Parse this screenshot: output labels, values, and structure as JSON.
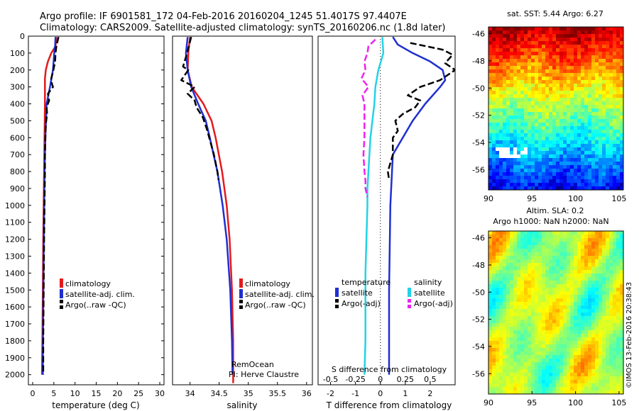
{
  "header": {
    "title_line1": "Argo profile: IF 6901581_172 04-Feb-2016 20160204_1245 51.4017S 97.4407E",
    "title_line2": "Climatology: CARS2009. Satellite-adjusted climatology: synTS_20160206.nc (1.8d later)"
  },
  "colors": {
    "climatology": "#e41a1c",
    "satellite_adj": "#1f2fd0",
    "argo": "#000000",
    "s_satellite": "#22d3e6",
    "s_argo": "#ee22ee"
  },
  "chart_data": [
    {
      "type": "line",
      "panel": "temperature",
      "xlabel": "temperature (deg C)",
      "ylabel": "",
      "xlim": [
        -1,
        31
      ],
      "ylim": [
        2060,
        0
      ],
      "xticks": [
        "0",
        "5",
        "10",
        "15",
        "20",
        "25",
        "30"
      ],
      "yticks": [
        "0",
        "100",
        "200",
        "300",
        "400",
        "500",
        "600",
        "700",
        "800",
        "900",
        "1000",
        "1100",
        "1200",
        "1300",
        "1400",
        "1500",
        "1600",
        "1700",
        "1800",
        "1900",
        "2000"
      ],
      "legend": [
        "climatology",
        "satellite-adj. clim.",
        "Argo(..raw -QC)"
      ],
      "series": [
        {
          "name": "climatology",
          "depth": [
            5,
            60,
            100,
            150,
            200,
            250,
            300,
            400,
            600,
            800,
            1000,
            1200,
            1500,
            1800,
            2000
          ],
          "values": [
            5.6,
            5.4,
            4.4,
            3.6,
            3.1,
            2.9,
            2.9,
            2.9,
            2.8,
            2.7,
            2.6,
            2.5,
            2.4,
            2.3,
            2.2
          ]
        },
        {
          "name": "satellite-adj. clim.",
          "depth": [
            5,
            60,
            100,
            200,
            300,
            400,
            600,
            800,
            1000,
            1300,
            1600,
            1900,
            2000
          ],
          "values": [
            5.4,
            5.3,
            5.1,
            4.8,
            4.1,
            3.3,
            3.0,
            2.8,
            2.7,
            2.6,
            2.5,
            2.4,
            2.4
          ]
        },
        {
          "name": "Argo(..raw -QC)",
          "depth": [
            5,
            60,
            100,
            150,
            200,
            260,
            300,
            340,
            380,
            420,
            460,
            520,
            600,
            700,
            800,
            1000,
            1200,
            1500,
            1800,
            2000
          ],
          "values": [
            6.1,
            5.6,
            5.4,
            5.3,
            4.9,
            4.3,
            4.8,
            3.6,
            3.9,
            3.3,
            3.4,
            3.1,
            3.0,
            2.9,
            2.9,
            2.8,
            2.7,
            2.6,
            2.5,
            2.5
          ]
        }
      ]
    },
    {
      "type": "line",
      "panel": "salinity",
      "xlabel": "salinity",
      "xlim": [
        33.7,
        36.1
      ],
      "ylim": [
        2060,
        0
      ],
      "xticks": [
        "34",
        "34.5",
        "35",
        "35.5",
        "36"
      ],
      "legend": [
        "climatology",
        "satellite-adj. clim.",
        "Argo(..raw -QC)"
      ],
      "annotation": [
        "RemOcean",
        "PI: Herve Claustre"
      ],
      "series": [
        {
          "name": "climatology",
          "depth": [
            5,
            100,
            200,
            300,
            400,
            500,
            600,
            800,
            1000,
            1200,
            1500,
            1800,
            2050
          ],
          "values": [
            34.0,
            33.97,
            33.96,
            34.03,
            34.23,
            34.37,
            34.44,
            34.55,
            34.63,
            34.68,
            34.72,
            34.74,
            34.74
          ]
        },
        {
          "name": "satellite-adj. clim.",
          "depth": [
            5,
            100,
            200,
            300,
            400,
            500,
            600,
            800,
            1000,
            1200,
            1500,
            1800,
            2000
          ],
          "values": [
            33.96,
            33.93,
            33.96,
            34.02,
            34.14,
            34.27,
            34.34,
            34.47,
            34.56,
            34.63,
            34.69,
            34.72,
            34.73
          ]
        },
        {
          "name": "Argo(..raw -QC)",
          "depth": [
            5,
            100,
            180,
            200,
            260,
            300,
            340,
            380,
            420,
            480,
            550,
            600,
            700,
            800,
            850
          ],
          "values": [
            34.02,
            33.95,
            33.88,
            33.97,
            33.85,
            34.08,
            33.96,
            34.08,
            34.11,
            34.22,
            34.29,
            34.33,
            34.41,
            34.47,
            34.49
          ]
        }
      ]
    },
    {
      "type": "line",
      "panel": "difference",
      "xlabel": "T difference from climatology",
      "top_xlabel": "S difference from climatology",
      "xlim": [
        -2.5,
        3
      ],
      "ylim": [
        2060,
        0
      ],
      "xticks": [
        "-2",
        "-1",
        "0",
        "1",
        "2"
      ],
      "top_xticks": [
        "-0.5",
        "-0.25",
        "0",
        "0.25",
        "0.5"
      ],
      "legend_headers": [
        "temperature",
        "salinity"
      ],
      "legend": [
        "satellite",
        "Argo(-adj)",
        "satellite",
        "Argo(-adj)"
      ],
      "series": [
        {
          "name": "satellite",
          "variable": "temperature",
          "depth": [
            5,
            50,
            100,
            150,
            200,
            260,
            300,
            400,
            500,
            600,
            700,
            1000,
            1500,
            2000
          ],
          "values": [
            0.5,
            0.7,
            1.3,
            2.0,
            2.5,
            2.6,
            2.4,
            1.8,
            1.3,
            0.9,
            0.5,
            0.4,
            0.35,
            0.35
          ]
        },
        {
          "name": "Argo(-adj)",
          "variable": "temperature",
          "depth": [
            40,
            80,
            110,
            160,
            200,
            230,
            260,
            300,
            350,
            380,
            420,
            460,
            500,
            560,
            600,
            700,
            800,
            850
          ],
          "values": [
            1.2,
            2.5,
            2.9,
            2.6,
            3.0,
            2.7,
            2.4,
            1.6,
            1.1,
            1.6,
            1.4,
            0.9,
            0.6,
            0.7,
            0.5,
            0.5,
            0.3,
            0.35
          ]
        },
        {
          "name": "satellite",
          "variable": "salinity",
          "depth": [
            5,
            100,
            200,
            300,
            400,
            500,
            600,
            700,
            800,
            900,
            1000,
            1200,
            1400,
            1600,
            1800,
            2000
          ],
          "values": [
            0.02,
            0.03,
            -0.02,
            -0.05,
            -0.06,
            -0.08,
            -0.1,
            -0.11,
            -0.12,
            -0.13,
            -0.13,
            -0.14,
            -0.15,
            -0.15,
            -0.15,
            -0.16
          ]
        },
        {
          "name": "Argo(-adj)",
          "variable": "salinity",
          "depth": [
            20,
            60,
            100,
            150,
            200,
            250,
            300,
            350,
            400,
            500,
            600,
            700,
            800,
            850,
            900,
            950
          ],
          "values": [
            -0.05,
            -0.12,
            -0.13,
            -0.16,
            -0.15,
            -0.19,
            -0.12,
            -0.18,
            -0.16,
            -0.16,
            -0.16,
            -0.17,
            -0.16,
            -0.15,
            -0.15,
            -0.13
          ]
        }
      ]
    },
    {
      "type": "heatmap",
      "panel": "sst_map",
      "title": "sat. SST: 5.44 Argo: 6.27",
      "xlim": [
        90,
        105.5
      ],
      "ylim": [
        -57.5,
        -45.5
      ],
      "xticks": [
        "90",
        "95",
        "100",
        "105"
      ],
      "yticks": [
        "-46",
        "-48",
        "-50",
        "-52",
        "-54",
        "-56"
      ]
    },
    {
      "type": "heatmap",
      "panel": "sla_map",
      "title_line1": "Altim. SLA: 0.2",
      "title_line2": "Argo h1000: NaN h2000: NaN",
      "xlim": [
        90,
        105.5
      ],
      "ylim": [
        -57.5,
        -45.5
      ],
      "xticks": [
        "90",
        "95",
        "100",
        "105"
      ],
      "yticks": [
        "-46",
        "-48",
        "-50",
        "-52",
        "-54",
        "-56"
      ]
    }
  ],
  "footer": {
    "credit": "©IMOS 13-Feb-2016 20:38:43"
  }
}
